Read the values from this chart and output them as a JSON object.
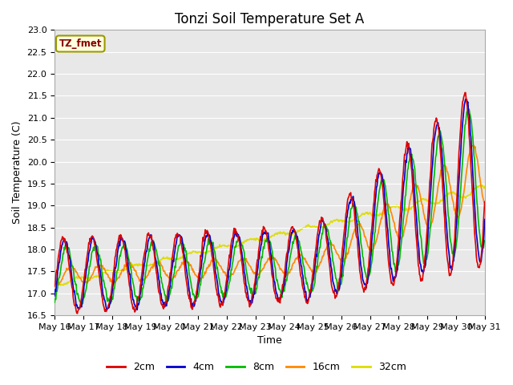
{
  "title": "Tonzi Soil Temperature Set A",
  "xlabel": "Time",
  "ylabel": "Soil Temperature (C)",
  "ylim": [
    16.5,
    23.0
  ],
  "fig_facecolor": "#ffffff",
  "plot_bg_color": "#e8e8e8",
  "legend_label": "TZ_fmet",
  "series_labels": [
    "2cm",
    "4cm",
    "8cm",
    "16cm",
    "32cm"
  ],
  "series_colors": [
    "#dd0000",
    "#0000cc",
    "#00bb00",
    "#ff8800",
    "#dddd00"
  ],
  "line_width": 1.2,
  "xtick_labels": [
    "May 16",
    "May 17",
    "May 18",
    "May 19",
    "May 20",
    "May 21",
    "May 22",
    "May 23",
    "May 24",
    "May 25",
    "May 26",
    "May 27",
    "May 28",
    "May 29",
    "May 30",
    "May 31"
  ],
  "title_fontsize": 12,
  "axis_fontsize": 9,
  "tick_fontsize": 8
}
